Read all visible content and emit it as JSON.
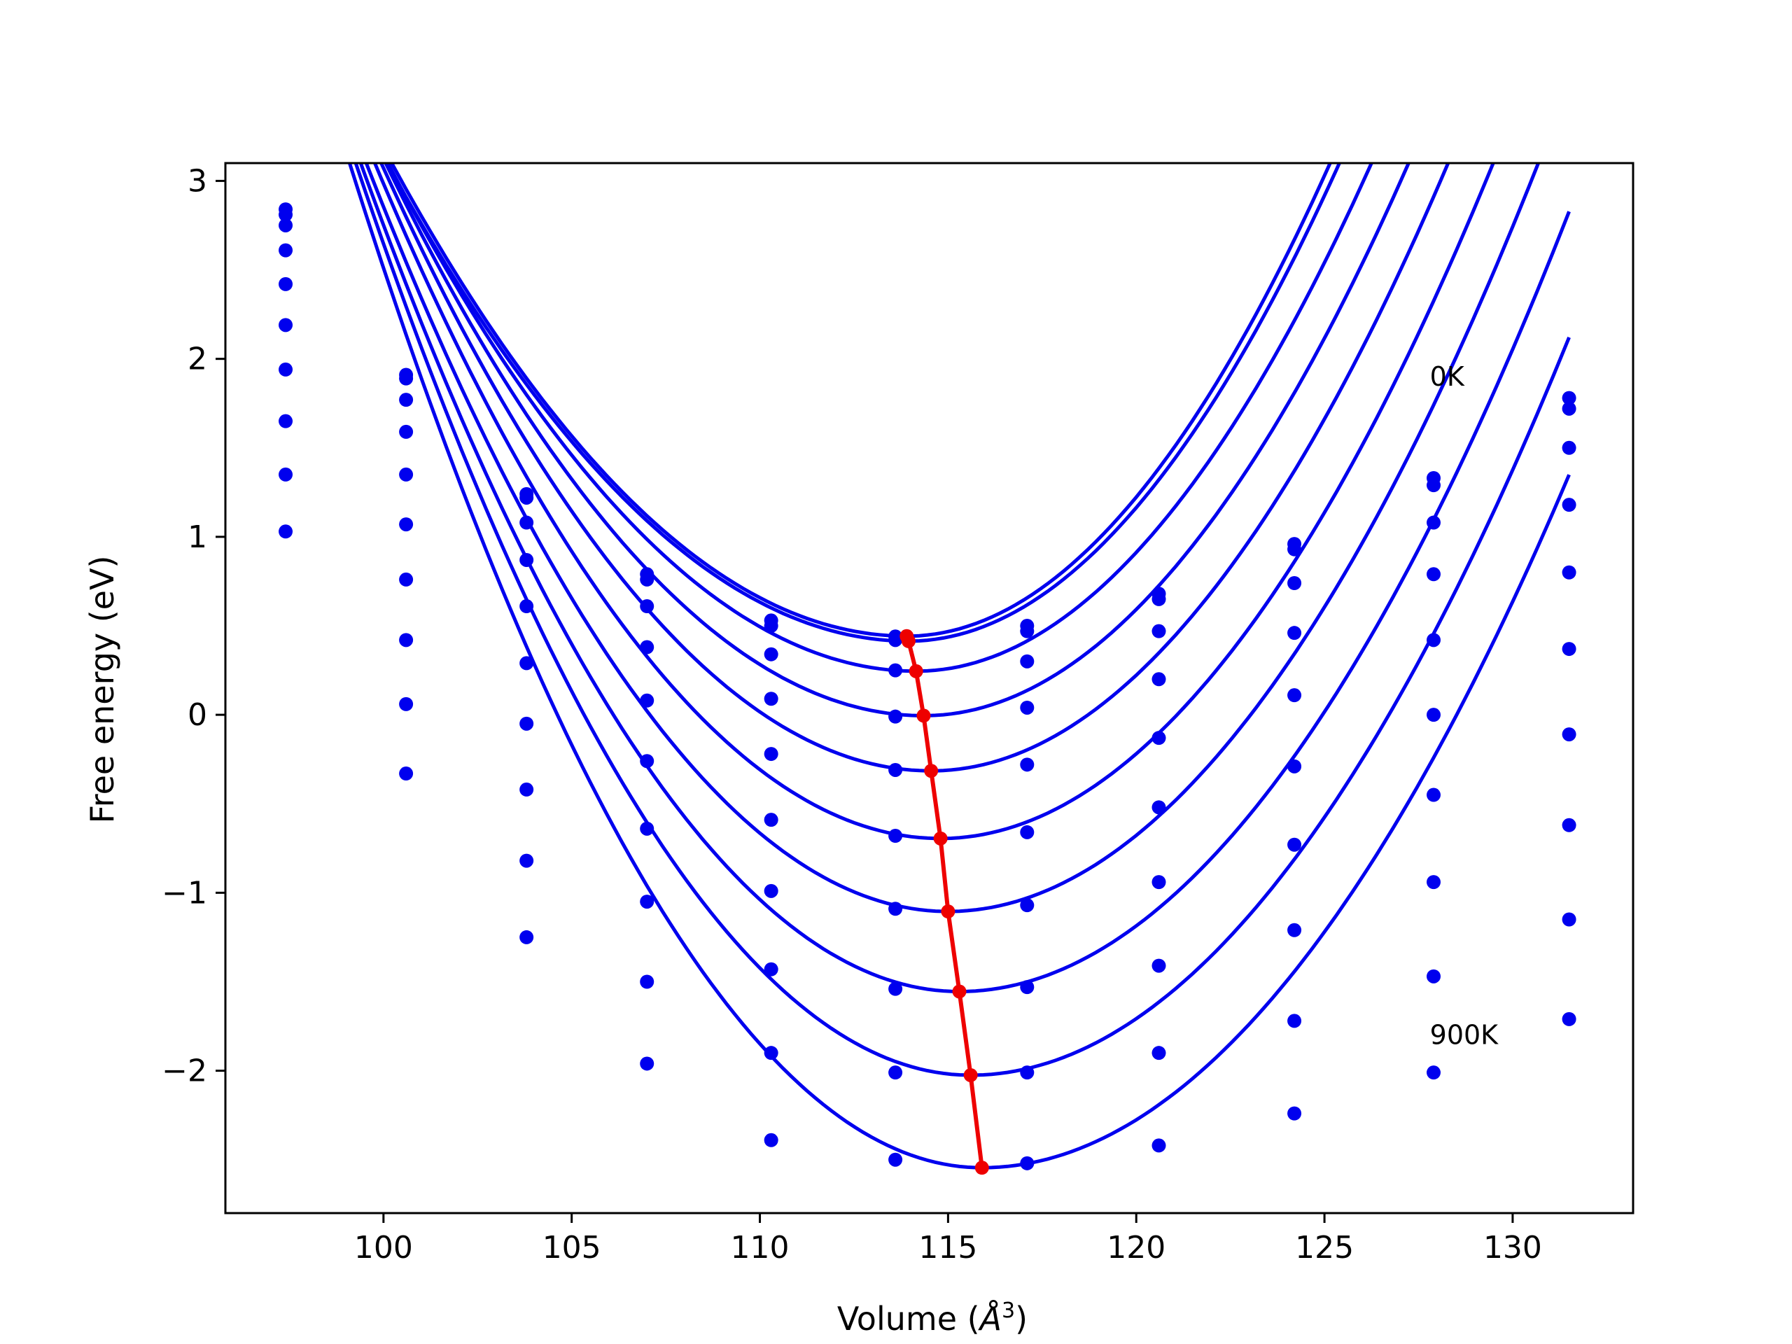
{
  "chart_data": {
    "type": "line",
    "title": "",
    "xlabel_main": "Volume (",
    "xlabel_unit": "Å",
    "xlabel_sup": "3",
    "xlabel_end": ")",
    "ylabel": "Free energy (eV)",
    "xlim": [
      95.8,
      133.2
    ],
    "ylim": [
      -2.8,
      3.1
    ],
    "xticks": [
      100,
      105,
      110,
      115,
      120,
      125,
      130
    ],
    "xtick_labels": [
      "100",
      "105",
      "110",
      "115",
      "120",
      "125",
      "130"
    ],
    "yticks": [
      -2,
      -1,
      0,
      1,
      2,
      3
    ],
    "ytick_labels": [
      "−2",
      "−1",
      "0",
      "1",
      "2",
      "3"
    ],
    "grid": false,
    "annotations": [
      {
        "text": "0K",
        "x": 127.8,
        "y": 1.85
      },
      {
        "text": "900K",
        "x": 127.8,
        "y": -1.85
      }
    ],
    "volumes": [
      97.4,
      100.6,
      103.8,
      107.0,
      110.3,
      113.6,
      117.1,
      120.6,
      124.2,
      127.9,
      131.5
    ],
    "series": [
      {
        "color": "#0000ee",
        "fit": [
          1.42,
          2.1,
          113.9,
          0.442
        ],
        "points": [
          2.84,
          1.91,
          1.24,
          0.79,
          0.53,
          0.44,
          0.5,
          0.68,
          0.96,
          1.33,
          1.78
        ]
      },
      {
        "color": "#0000ee",
        "fit": [
          1.4,
          2.05,
          113.95,
          0.414
        ],
        "points": [
          2.81,
          1.89,
          1.22,
          0.76,
          0.5,
          0.42,
          0.47,
          0.65,
          0.93,
          1.29,
          1.72
        ]
      },
      {
        "color": "#0000ee",
        "fit": [
          1.45,
          1.95,
          114.15,
          0.245
        ],
        "points": [
          2.75,
          1.77,
          1.08,
          0.61,
          0.34,
          0.25,
          0.3,
          0.47,
          0.74,
          1.08,
          1.5
        ]
      },
      {
        "color": "#0000ee",
        "fit": [
          1.52,
          1.87,
          114.35,
          -0.005
        ],
        "points": [
          2.61,
          1.59,
          0.87,
          0.38,
          0.09,
          -0.01,
          0.04,
          0.2,
          0.46,
          0.79,
          1.18
        ]
      },
      {
        "color": "#0000ee",
        "fit": [
          1.6,
          1.81,
          114.55,
          -0.315
        ],
        "points": [
          2.42,
          1.35,
          0.61,
          0.08,
          -0.22,
          -0.31,
          -0.28,
          -0.13,
          0.11,
          0.42,
          0.8
        ]
      },
      {
        "color": "#0000ee",
        "fit": [
          1.68,
          1.76,
          114.8,
          -0.695
        ],
        "points": [
          2.19,
          1.07,
          0.29,
          -0.26,
          -0.59,
          -0.68,
          -0.66,
          -0.52,
          -0.29,
          0.0,
          0.37
        ]
      },
      {
        "color": "#0000ee",
        "fit": [
          1.76,
          1.71,
          115.0,
          -1.105
        ],
        "points": [
          1.94,
          0.76,
          -0.05,
          -0.64,
          -0.99,
          -1.09,
          -1.07,
          -0.94,
          -0.73,
          -0.45,
          -0.11
        ]
      },
      {
        "color": "#0000ee",
        "fit": [
          1.84,
          1.67,
          115.3,
          -1.555
        ],
        "points": [
          1.65,
          0.42,
          -0.42,
          -1.05,
          -1.43,
          -1.54,
          -1.53,
          -1.41,
          -1.21,
          -0.94,
          -0.62
        ]
      },
      {
        "color": "#0000ee",
        "fit": [
          1.92,
          1.64,
          115.6,
          -2.025
        ],
        "points": [
          1.35,
          0.06,
          -0.82,
          -1.5,
          -1.9,
          -2.01,
          -2.01,
          -1.9,
          -1.72,
          -1.47,
          -1.15
        ]
      },
      {
        "color": "#0000ee",
        "fit": [
          2.0,
          1.6,
          115.9,
          -2.545
        ],
        "points": [
          1.03,
          -0.33,
          -1.25,
          -1.96,
          -2.39,
          -2.5,
          -2.52,
          -2.42,
          -2.24,
          -2.01,
          -1.71
        ]
      }
    ],
    "minima_series": {
      "color": "#ee0000",
      "x": [
        113.9,
        113.95,
        114.15,
        114.35,
        114.55,
        114.8,
        115.0,
        115.3,
        115.6,
        115.9
      ],
      "y": [
        0.442,
        0.414,
        0.245,
        -0.005,
        -0.315,
        -0.695,
        -1.105,
        -1.555,
        -2.025,
        -2.545
      ]
    }
  }
}
